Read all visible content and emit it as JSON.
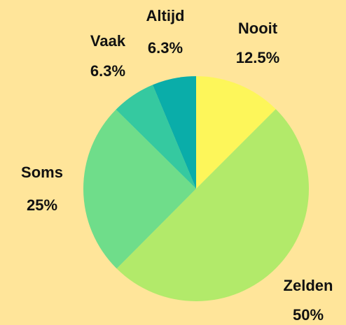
{
  "chart_data": {
    "type": "pie",
    "categories": [
      "Nooit",
      "Zelden",
      "Soms",
      "Vaak",
      "Altijd"
    ],
    "values": [
      12.5,
      50,
      25,
      6.3,
      6.3
    ],
    "value_labels": [
      "12.5%",
      "50%",
      "25%",
      "6.3%",
      "6.3%"
    ],
    "colors": [
      "#fdf65a",
      "#b2ea6a",
      "#6fdd8a",
      "#35c9a0",
      "#0aada9"
    ]
  }
}
